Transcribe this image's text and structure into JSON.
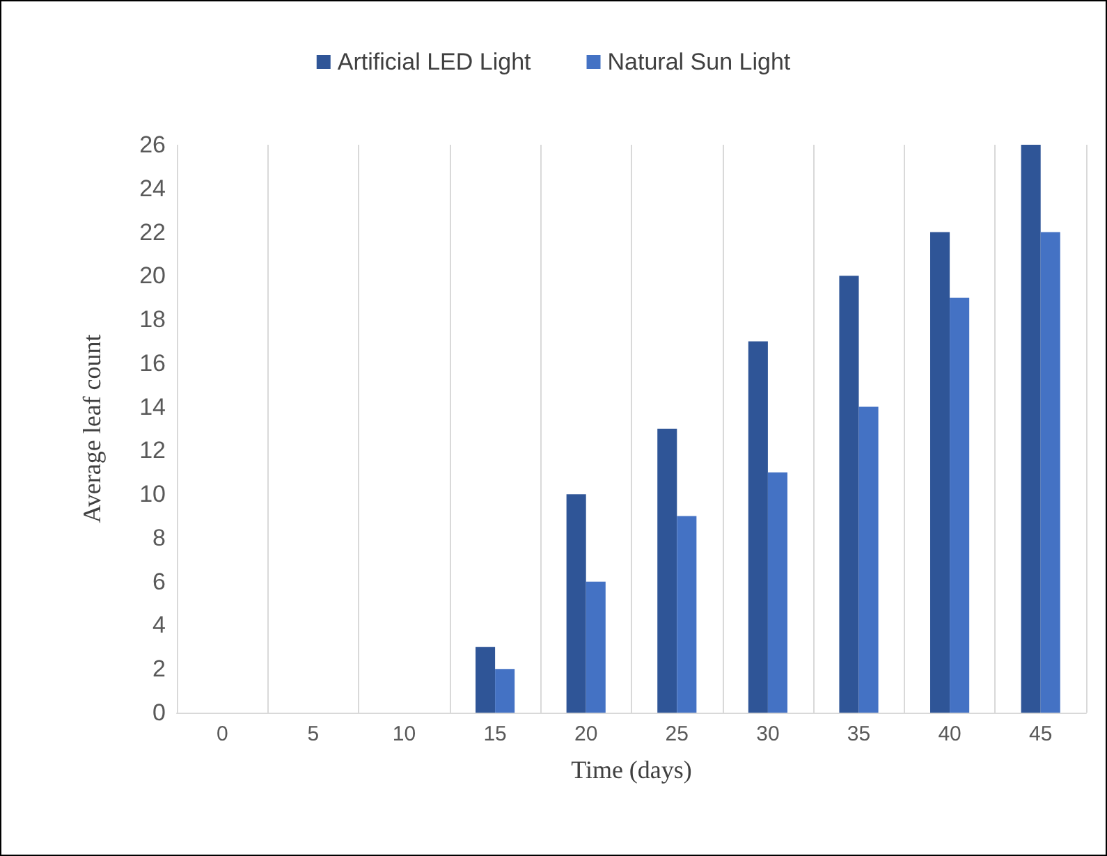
{
  "chart_data": {
    "type": "bar",
    "xlabel": "Time (days)",
    "ylabel": "Average leaf count",
    "categories": [
      "0",
      "5",
      "10",
      "15",
      "20",
      "25",
      "30",
      "35",
      "40",
      "45"
    ],
    "series": [
      {
        "name": "Artificial LED Light",
        "color": "#2f5597",
        "values": [
          0,
          0,
          0,
          3,
          10,
          13,
          17,
          20,
          22,
          26
        ]
      },
      {
        "name": "Natural Sun Light",
        "color": "#4472c4",
        "values": [
          0,
          0,
          0,
          2,
          6,
          9,
          11,
          14,
          19,
          22
        ]
      }
    ],
    "ylim": [
      0,
      26
    ],
    "yticks": [
      0,
      2,
      4,
      6,
      8,
      10,
      12,
      14,
      16,
      18,
      20,
      22,
      24,
      26
    ],
    "grid": "x",
    "legend": "top"
  }
}
